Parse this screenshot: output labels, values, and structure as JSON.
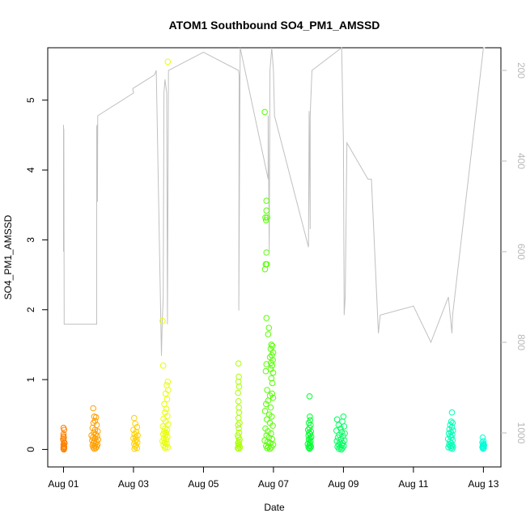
{
  "chart_data": {
    "type": "scatter",
    "title": "ATOM1 Southbound SO4_PM1_AMSSD",
    "xlabel": "Date",
    "ylabel": "SO4_PM1_AMSSD",
    "x_tick_labels": [
      "Aug 01",
      "Aug 03",
      "Aug 05",
      "Aug 07",
      "Aug 09",
      "Aug 11",
      "Aug 13"
    ],
    "x_tick_days": [
      1,
      3,
      5,
      7,
      9,
      11,
      13
    ],
    "xlim_days": [
      0.55,
      13.5
    ],
    "ylim": [
      -0.25,
      5.75
    ],
    "y_ticks": [
      0,
      1,
      2,
      3,
      4,
      5
    ],
    "y2_ticks": [
      200,
      400,
      600,
      800,
      1000
    ],
    "y2lim": [
      1075,
      150
    ],
    "y2_reversed": true,
    "grid": false,
    "legend": "none",
    "colors": {
      "orange": "#ff8000",
      "orange2": "#ff9f00",
      "yellow_orange": "#ffd000",
      "yellow": "#e8ff00",
      "green_yellow": "#a8ff00",
      "green": "#55ff00",
      "bright_green": "#00ff30",
      "green2": "#00ff60",
      "teal": "#00ffb5",
      "cyan": "#00ffd8",
      "altitude_line": "#c0c0c0"
    },
    "series": [
      {
        "color": "#ff8000",
        "points": [
          [
            1.0,
            0.31
          ],
          [
            1.02,
            0.28
          ],
          [
            1.0,
            0.22
          ],
          [
            1.01,
            0.17
          ],
          [
            1.0,
            0.13
          ],
          [
            1.02,
            0.1
          ],
          [
            1.0,
            0.07
          ],
          [
            1.01,
            0.05
          ],
          [
            1.0,
            0.03
          ],
          [
            1.02,
            0.02
          ],
          [
            1.0,
            0.01
          ],
          [
            1.01,
            0.0
          ],
          [
            0.99,
            0.15
          ],
          [
            1.03,
            0.09
          ],
          [
            1.0,
            0.19
          ],
          [
            1.02,
            0.04
          ]
        ]
      },
      {
        "color": "#ff9f00",
        "points": [
          [
            1.85,
            0.59
          ],
          [
            1.88,
            0.47
          ],
          [
            1.93,
            0.46
          ],
          [
            1.9,
            0.41
          ],
          [
            1.86,
            0.38
          ],
          [
            1.95,
            0.35
          ],
          [
            1.83,
            0.31
          ],
          [
            1.9,
            0.28
          ],
          [
            1.98,
            0.26
          ],
          [
            1.87,
            0.24
          ],
          [
            1.92,
            0.22
          ],
          [
            1.8,
            0.2
          ],
          [
            1.96,
            0.19
          ],
          [
            1.84,
            0.17
          ],
          [
            1.9,
            0.16
          ],
          [
            1.99,
            0.14
          ],
          [
            1.82,
            0.13
          ],
          [
            1.88,
            0.12
          ],
          [
            1.94,
            0.11
          ],
          [
            1.86,
            0.09
          ],
          [
            1.91,
            0.08
          ],
          [
            1.97,
            0.07
          ],
          [
            1.83,
            0.06
          ],
          [
            1.89,
            0.05
          ],
          [
            1.95,
            0.04
          ],
          [
            1.85,
            0.03
          ],
          [
            1.92,
            0.02
          ],
          [
            1.88,
            0.01
          ]
        ]
      },
      {
        "color": "#ffd000",
        "points": [
          [
            3.02,
            0.45
          ],
          [
            3.05,
            0.37
          ],
          [
            3.1,
            0.32
          ],
          [
            3.0,
            0.28
          ],
          [
            3.08,
            0.25
          ],
          [
            3.03,
            0.22
          ],
          [
            3.12,
            0.2
          ],
          [
            3.06,
            0.18
          ],
          [
            3.0,
            0.16
          ],
          [
            3.09,
            0.14
          ],
          [
            3.04,
            0.12
          ],
          [
            3.11,
            0.1
          ],
          [
            3.02,
            0.08
          ],
          [
            3.07,
            0.06
          ],
          [
            3.05,
            0.04
          ],
          [
            3.1,
            0.02
          ],
          [
            3.03,
            0.01
          ]
        ]
      },
      {
        "color": "#e8ff00",
        "points": [
          [
            3.98,
            5.55
          ],
          [
            3.83,
            1.84
          ],
          [
            3.85,
            1.2
          ],
          [
            3.98,
            0.97
          ],
          [
            3.95,
            0.92
          ],
          [
            3.99,
            0.85
          ],
          [
            3.92,
            0.8
          ],
          [
            3.96,
            0.72
          ],
          [
            3.88,
            0.65
          ],
          [
            3.94,
            0.58
          ],
          [
            3.9,
            0.53
          ],
          [
            3.97,
            0.48
          ],
          [
            3.86,
            0.44
          ],
          [
            3.92,
            0.4
          ],
          [
            3.99,
            0.36
          ],
          [
            3.84,
            0.33
          ],
          [
            3.9,
            0.3
          ],
          [
            3.96,
            0.28
          ],
          [
            3.88,
            0.26
          ],
          [
            3.93,
            0.24
          ],
          [
            3.85,
            0.22
          ],
          [
            3.91,
            0.2
          ],
          [
            3.97,
            0.18
          ],
          [
            3.87,
            0.16
          ],
          [
            3.94,
            0.14
          ],
          [
            3.83,
            0.12
          ],
          [
            3.89,
            0.1
          ],
          [
            3.95,
            0.08
          ],
          [
            3.86,
            0.06
          ],
          [
            3.92,
            0.04
          ],
          [
            3.98,
            0.03
          ],
          [
            3.9,
            0.02
          ]
        ]
      },
      {
        "color": "#a8ff00",
        "points": [
          [
            6.0,
            1.23
          ],
          [
            6.01,
            1.04
          ],
          [
            6.0,
            0.97
          ],
          [
            6.02,
            0.9
          ],
          [
            5.99,
            0.81
          ],
          [
            6.0,
            0.69
          ],
          [
            6.01,
            0.6
          ],
          [
            6.02,
            0.53
          ],
          [
            6.0,
            0.45
          ],
          [
            6.03,
            0.38
          ],
          [
            5.99,
            0.35
          ],
          [
            6.01,
            0.3
          ],
          [
            6.02,
            0.24
          ],
          [
            5.98,
            0.2
          ],
          [
            6.0,
            0.17
          ],
          [
            6.03,
            0.14
          ],
          [
            6.01,
            0.11
          ],
          [
            5.99,
            0.09
          ],
          [
            6.02,
            0.07
          ],
          [
            6.0,
            0.05
          ],
          [
            6.04,
            0.03
          ],
          [
            5.98,
            0.02
          ],
          [
            6.01,
            0.01
          ]
        ]
      },
      {
        "color": "#55ff00",
        "points": [
          [
            6.75,
            4.83
          ],
          [
            6.8,
            3.56
          ],
          [
            6.8,
            3.42
          ],
          [
            6.77,
            3.32
          ],
          [
            6.82,
            3.32
          ],
          [
            6.79,
            3.28
          ],
          [
            6.8,
            2.82
          ],
          [
            6.78,
            2.65
          ],
          [
            6.81,
            2.65
          ],
          [
            6.76,
            2.58
          ],
          [
            6.8,
            1.88
          ],
          [
            6.87,
            1.74
          ],
          [
            6.85,
            1.65
          ],
          [
            6.94,
            1.5
          ],
          [
            6.97,
            1.48
          ],
          [
            6.92,
            1.44
          ],
          [
            6.99,
            1.39
          ],
          [
            6.95,
            1.35
          ],
          [
            6.9,
            1.32
          ],
          [
            6.98,
            1.28
          ],
          [
            6.93,
            1.24
          ],
          [
            6.8,
            1.22
          ],
          [
            6.96,
            1.2
          ],
          [
            6.92,
            1.15
          ],
          [
            6.78,
            1.12
          ],
          [
            6.99,
            1.1
          ],
          [
            6.94,
            1.02
          ],
          [
            6.97,
            0.95
          ],
          [
            6.82,
            0.85
          ],
          [
            6.96,
            0.8
          ],
          [
            6.9,
            0.77
          ],
          [
            6.99,
            0.74
          ],
          [
            6.85,
            0.7
          ],
          [
            6.79,
            0.65
          ],
          [
            6.92,
            0.6
          ],
          [
            6.76,
            0.55
          ],
          [
            6.88,
            0.5
          ],
          [
            6.95,
            0.47
          ],
          [
            6.81,
            0.43
          ],
          [
            6.9,
            0.38
          ],
          [
            6.98,
            0.34
          ],
          [
            6.77,
            0.3
          ],
          [
            6.84,
            0.26
          ],
          [
            6.93,
            0.23
          ],
          [
            6.8,
            0.2
          ],
          [
            6.87,
            0.17
          ],
          [
            6.96,
            0.15
          ],
          [
            6.75,
            0.13
          ],
          [
            6.83,
            0.11
          ],
          [
            6.91,
            0.09
          ],
          [
            6.99,
            0.07
          ],
          [
            6.79,
            0.05
          ],
          [
            6.86,
            0.04
          ],
          [
            6.94,
            0.03
          ],
          [
            6.82,
            0.02
          ],
          [
            6.9,
            0.01
          ]
        ]
      },
      {
        "color": "#00ff30",
        "points": [
          [
            8.03,
            0.76
          ],
          [
            8.04,
            0.47
          ],
          [
            8.05,
            0.42
          ],
          [
            8.01,
            0.38
          ],
          [
            8.06,
            0.35
          ],
          [
            8.03,
            0.31
          ],
          [
            7.99,
            0.28
          ],
          [
            8.07,
            0.26
          ],
          [
            8.02,
            0.24
          ],
          [
            8.05,
            0.22
          ],
          [
            8.0,
            0.2
          ],
          [
            8.08,
            0.18
          ],
          [
            8.04,
            0.16
          ],
          [
            8.01,
            0.14
          ],
          [
            8.06,
            0.12
          ],
          [
            8.03,
            0.1
          ],
          [
            7.98,
            0.08
          ],
          [
            8.05,
            0.06
          ],
          [
            8.02,
            0.05
          ],
          [
            8.07,
            0.04
          ],
          [
            8.0,
            0.03
          ],
          [
            8.04,
            0.02
          ],
          [
            8.03,
            0.01
          ]
        ]
      },
      {
        "color": "#00ff60",
        "points": [
          [
            8.82,
            0.43
          ],
          [
            9.0,
            0.47
          ],
          [
            8.97,
            0.4
          ],
          [
            8.86,
            0.35
          ],
          [
            9.02,
            0.33
          ],
          [
            8.92,
            0.3
          ],
          [
            8.8,
            0.27
          ],
          [
            8.95,
            0.25
          ],
          [
            9.04,
            0.23
          ],
          [
            8.88,
            0.21
          ],
          [
            8.99,
            0.19
          ],
          [
            8.84,
            0.17
          ],
          [
            8.93,
            0.15
          ],
          [
            9.03,
            0.13
          ],
          [
            8.81,
            0.12
          ],
          [
            8.9,
            0.1
          ],
          [
            8.98,
            0.09
          ],
          [
            8.86,
            0.07
          ],
          [
            8.95,
            0.06
          ],
          [
            9.01,
            0.05
          ],
          [
            8.83,
            0.04
          ],
          [
            8.91,
            0.03
          ],
          [
            8.97,
            0.02
          ],
          [
            8.87,
            0.01
          ],
          [
            8.94,
            0.0
          ]
        ]
      },
      {
        "color": "#00ffb5",
        "points": [
          [
            12.1,
            0.53
          ],
          [
            12.08,
            0.4
          ],
          [
            12.12,
            0.38
          ],
          [
            12.05,
            0.35
          ],
          [
            12.1,
            0.32
          ],
          [
            12.03,
            0.29
          ],
          [
            12.13,
            0.27
          ],
          [
            12.07,
            0.25
          ],
          [
            12.01,
            0.23
          ],
          [
            12.11,
            0.21
          ],
          [
            12.05,
            0.19
          ],
          [
            12.09,
            0.17
          ],
          [
            11.99,
            0.15
          ],
          [
            12.12,
            0.13
          ],
          [
            12.04,
            0.11
          ],
          [
            12.08,
            0.09
          ],
          [
            12.02,
            0.07
          ],
          [
            12.1,
            0.06
          ],
          [
            12.06,
            0.05
          ],
          [
            12.13,
            0.04
          ],
          [
            12.0,
            0.03
          ],
          [
            12.07,
            0.02
          ],
          [
            12.11,
            0.01
          ]
        ]
      },
      {
        "color": "#00ffd8",
        "points": [
          [
            12.98,
            0.17
          ],
          [
            13.0,
            0.12
          ],
          [
            12.97,
            0.1
          ],
          [
            13.01,
            0.08
          ],
          [
            12.99,
            0.07
          ],
          [
            13.02,
            0.06
          ],
          [
            12.98,
            0.05
          ],
          [
            13.0,
            0.04
          ],
          [
            12.97,
            0.03
          ],
          [
            13.01,
            0.02
          ],
          [
            12.99,
            0.01
          ]
        ]
      }
    ],
    "secondary_line": {
      "color": "#c0c0c0",
      "points": [
        [
          1.0,
          600
        ],
        [
          1.0,
          320
        ],
        [
          1.0,
          330
        ],
        [
          1.01,
          330
        ],
        [
          1.02,
          760
        ],
        [
          1.95,
          760
        ],
        [
          1.95,
          325
        ],
        [
          1.96,
          320
        ],
        [
          1.97,
          490
        ],
        [
          1.98,
          300
        ],
        [
          3.0,
          250
        ],
        [
          2.98,
          240
        ],
        [
          3.6,
          210
        ],
        [
          3.65,
          200
        ],
        [
          3.8,
          830
        ],
        [
          3.82,
          760
        ],
        [
          3.85,
          700
        ],
        [
          3.87,
          250
        ],
        [
          3.9,
          220
        ],
        [
          3.95,
          250
        ],
        [
          3.97,
          760
        ],
        [
          4.0,
          200
        ],
        [
          5.0,
          160
        ],
        [
          6.0,
          200
        ],
        [
          6.02,
          210
        ],
        [
          6.01,
          730
        ],
        [
          6.05,
          140
        ],
        [
          6.85,
          440
        ],
        [
          6.85,
          300
        ],
        [
          6.88,
          600
        ],
        [
          6.9,
          200
        ],
        [
          6.95,
          140
        ],
        [
          7.0,
          200
        ],
        [
          7.03,
          300
        ],
        [
          8.0,
          590
        ],
        [
          8.02,
          290
        ],
        [
          8.05,
          550
        ],
        [
          8.05,
          300
        ],
        [
          8.1,
          200
        ],
        [
          8.95,
          140
        ],
        [
          9.0,
          360
        ],
        [
          9.02,
          740
        ],
        [
          9.05,
          700
        ],
        [
          9.1,
          360
        ],
        [
          9.7,
          440
        ],
        [
          9.8,
          440
        ],
        [
          10.0,
          780
        ],
        [
          10.05,
          740
        ],
        [
          11.0,
          720
        ],
        [
          11.5,
          800
        ],
        [
          12.0,
          700
        ],
        [
          12.1,
          780
        ],
        [
          12.12,
          740
        ],
        [
          13.0,
          130
        ],
        [
          13.05,
          140
        ]
      ]
    }
  }
}
